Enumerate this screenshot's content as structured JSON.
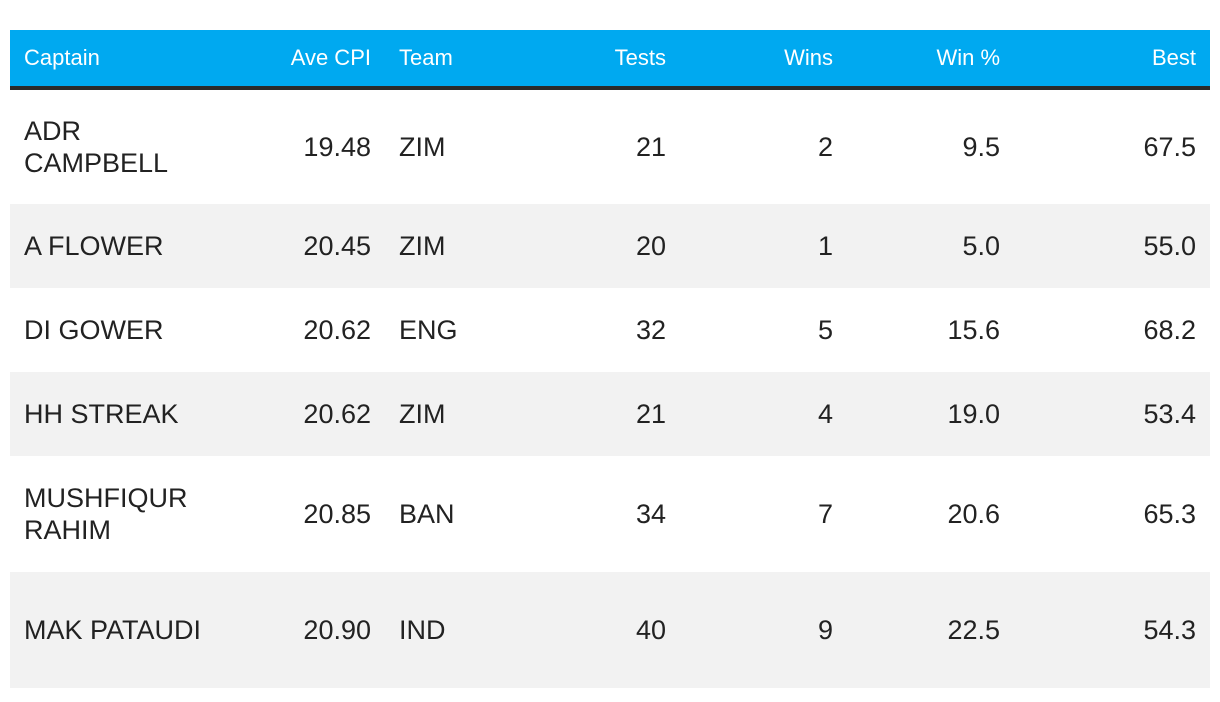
{
  "chart_data": {
    "type": "table",
    "columns": [
      "Captain",
      "Ave CPI",
      "Team",
      "Tests",
      "Wins",
      "Win %",
      "Best"
    ],
    "rows": [
      {
        "captain": "ADR CAMPBELL",
        "ave_cpi": "19.48",
        "team": "ZIM",
        "tests": "21",
        "wins": "2",
        "win_pct": "9.5",
        "best": "67.5"
      },
      {
        "captain": "A FLOWER",
        "ave_cpi": "20.45",
        "team": "ZIM",
        "tests": "20",
        "wins": "1",
        "win_pct": "5.0",
        "best": "55.0"
      },
      {
        "captain": "DI GOWER",
        "ave_cpi": "20.62",
        "team": "ENG",
        "tests": "32",
        "wins": "5",
        "win_pct": "15.6",
        "best": "68.2"
      },
      {
        "captain": "HH STREAK",
        "ave_cpi": "20.62",
        "team": "ZIM",
        "tests": "21",
        "wins": "4",
        "win_pct": "19.0",
        "best": "53.4"
      },
      {
        "captain": "MUSHFIQUR RAHIM",
        "ave_cpi": "20.85",
        "team": "BAN",
        "tests": "34",
        "wins": "7",
        "win_pct": "20.6",
        "best": "65.3"
      },
      {
        "captain": "MAK PATAUDI",
        "ave_cpi": "20.90",
        "team": "IND",
        "tests": "40",
        "wins": "9",
        "win_pct": "22.5",
        "best": "54.3"
      }
    ]
  },
  "colors": {
    "header_bg": "#00a9f0",
    "header_text": "#ffffff",
    "row_alt_bg": "#f2f2f2",
    "header_rule": "#2a2a2a"
  }
}
